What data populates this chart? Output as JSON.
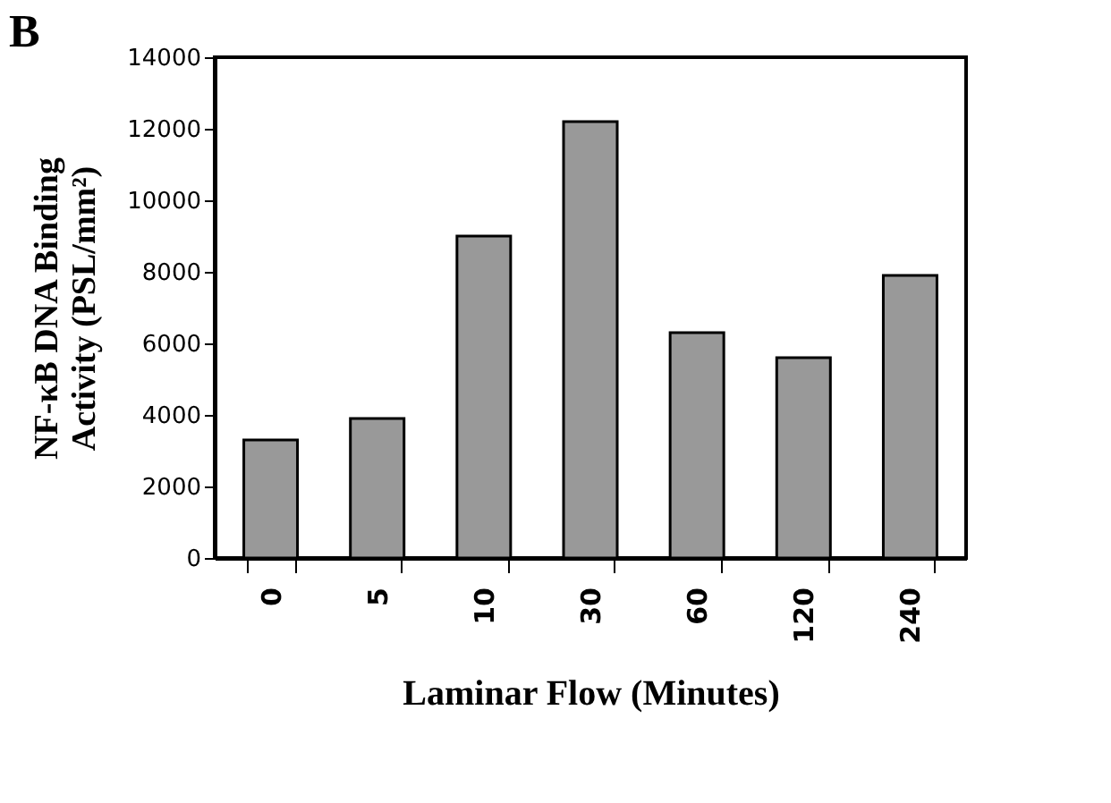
{
  "chart_data": {
    "type": "bar",
    "title": "B",
    "categories": [
      "0",
      "5",
      "10",
      "30",
      "60",
      "120",
      "240"
    ],
    "values": [
      3300,
      3900,
      9000,
      12200,
      6300,
      5600,
      7900
    ],
    "color": "#999999",
    "xlabel": "Laminar Flow (Minutes)",
    "ylabel": "NF-κB DNA Binding Activity (PSL/mm²)",
    "ylim": [
      0,
      14000
    ],
    "yticks": [
      0,
      2000,
      4000,
      6000,
      8000,
      10000,
      12000,
      14000
    ],
    "grid": false
  }
}
